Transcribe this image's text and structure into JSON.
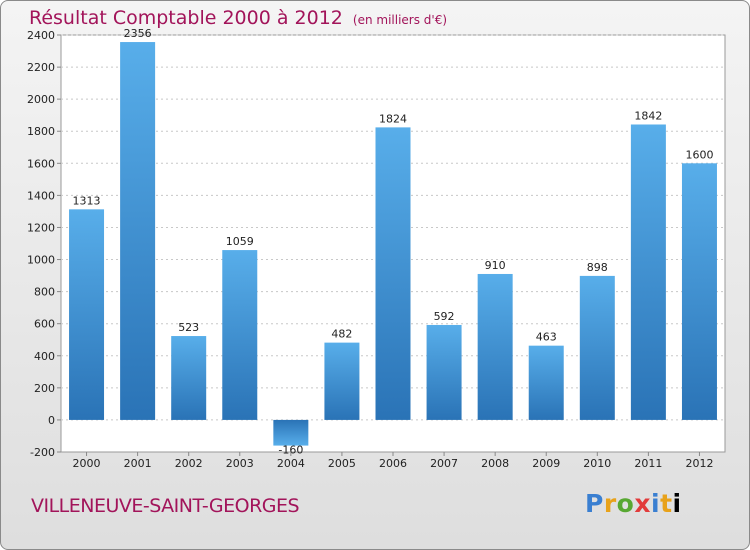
{
  "header": {
    "title": "Résultat Comptable 2000 à 2012",
    "subtitle": "(en milliers d'€)"
  },
  "footer": {
    "place": "VILLENEUVE-SAINT-GEORGES",
    "logo_letters": [
      "P",
      "r",
      "o",
      "x",
      "i",
      "t",
      "i"
    ]
  },
  "colors": {
    "bar": "#4a9fe0",
    "bar_dark": "#2b74b8",
    "title": "#a2145a"
  },
  "chart_data": {
    "type": "bar",
    "title": "Résultat Comptable 2000 à 2012",
    "subtitle": "(en milliers d'€)",
    "categories": [
      "2000",
      "2001",
      "2002",
      "2003",
      "2004",
      "2005",
      "2006",
      "2007",
      "2008",
      "2009",
      "2010",
      "2011",
      "2012"
    ],
    "values": [
      1313,
      2356,
      523,
      1059,
      -160,
      482,
      1824,
      592,
      910,
      463,
      898,
      1842,
      1600
    ],
    "value_labels": [
      "1313",
      "2356",
      "523",
      "1059",
      "-160",
      "482",
      "1824",
      "592",
      "910",
      "463",
      "898",
      "1842",
      "1600"
    ],
    "y_ticks": [
      -200,
      0,
      200,
      400,
      600,
      800,
      1000,
      1200,
      1400,
      1600,
      1800,
      2000,
      2200,
      2400
    ],
    "ylim": [
      -200,
      2400
    ],
    "grid": "horizontal-dashed",
    "legend": "none"
  }
}
